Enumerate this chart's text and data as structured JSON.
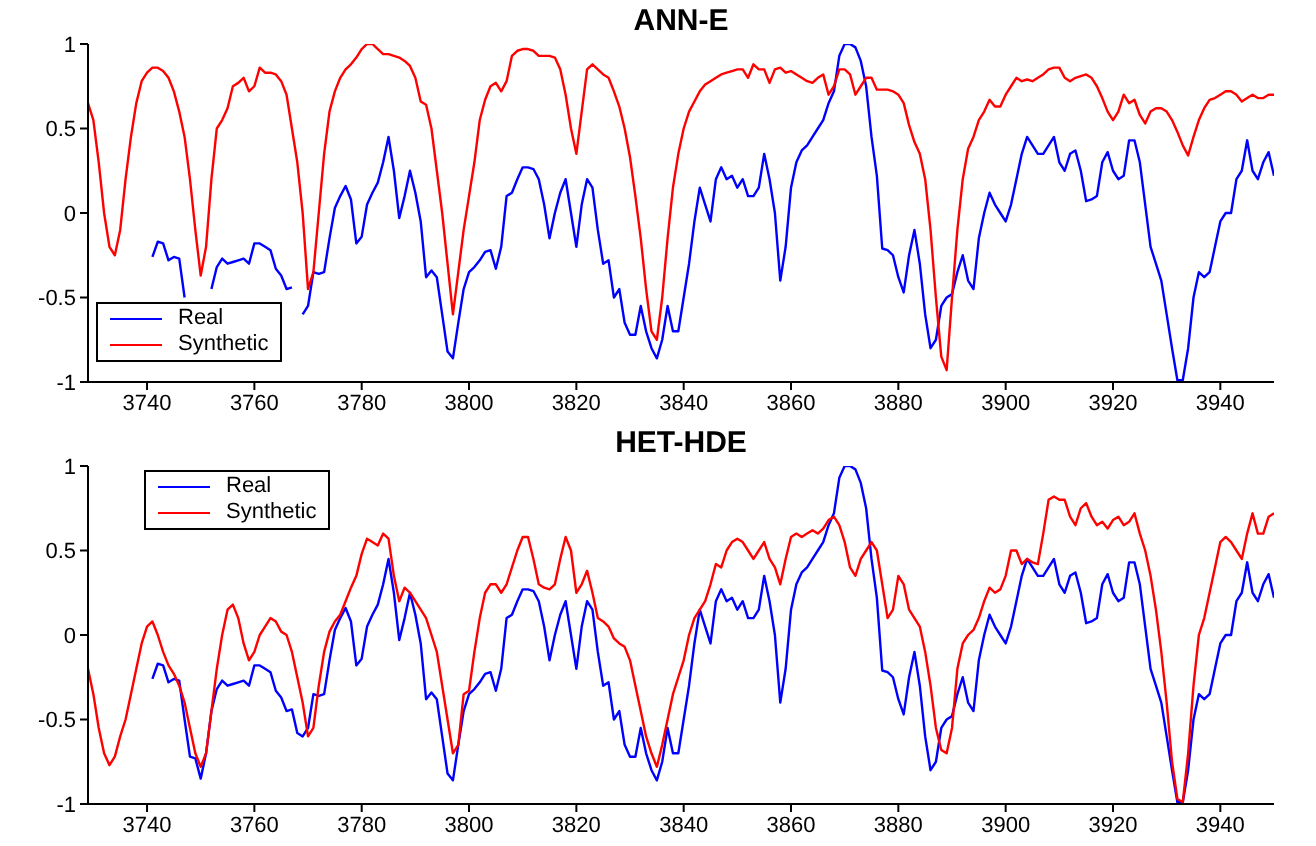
{
  "chart_data": [
    {
      "type": "line",
      "title": "ANN-E",
      "legend": "bottom left",
      "xlim": [
        3729,
        3950
      ],
      "xticks": [
        3740,
        3760,
        3780,
        3800,
        3820,
        3840,
        3860,
        3880,
        3900,
        3920,
        3940
      ],
      "ylim": [
        -1,
        1
      ],
      "yticks": [
        -1,
        -0.5,
        0,
        0.5,
        1
      ],
      "x": [
        3729,
        3730,
        3731,
        3732,
        3733,
        3734,
        3735,
        3736,
        3737,
        3738,
        3739,
        3740,
        3741,
        3742,
        3743,
        3744,
        3745,
        3746,
        3747,
        3748,
        3749,
        3750,
        3751,
        3752,
        3753,
        3754,
        3755,
        3756,
        3757,
        3758,
        3759,
        3760,
        3761,
        3762,
        3763,
        3764,
        3765,
        3766,
        3767,
        3768,
        3769,
        3770,
        3771,
        3772,
        3773,
        3774,
        3775,
        3776,
        3777,
        3778,
        3779,
        3780,
        3781,
        3782,
        3783,
        3784,
        3785,
        3786,
        3787,
        3788,
        3789,
        3790,
        3791,
        3792,
        3793,
        3794,
        3795,
        3796,
        3797,
        3798,
        3799,
        3800,
        3801,
        3802,
        3803,
        3804,
        3805,
        3806,
        3807,
        3808,
        3809,
        3810,
        3811,
        3812,
        3813,
        3814,
        3815,
        3816,
        3817,
        3818,
        3819,
        3820,
        3821,
        3822,
        3823,
        3824,
        3825,
        3826,
        3827,
        3828,
        3829,
        3830,
        3831,
        3832,
        3833,
        3834,
        3835,
        3836,
        3837,
        3838,
        3839,
        3840,
        3841,
        3842,
        3843,
        3844,
        3845,
        3846,
        3847,
        3848,
        3849,
        3850,
        3851,
        3852,
        3853,
        3854,
        3855,
        3856,
        3857,
        3858,
        3859,
        3860,
        3861,
        3862,
        3863,
        3864,
        3865,
        3866,
        3867,
        3868,
        3869,
        3870,
        3871,
        3872,
        3873,
        3874,
        3875,
        3876,
        3877,
        3878,
        3879,
        3880,
        3881,
        3882,
        3883,
        3884,
        3885,
        3886,
        3887,
        3888,
        3889,
        3890,
        3891,
        3892,
        3893,
        3894,
        3895,
        3896,
        3897,
        3898,
        3899,
        3900,
        3901,
        3902,
        3903,
        3904,
        3905,
        3906,
        3907,
        3908,
        3909,
        3910,
        3911,
        3912,
        3913,
        3914,
        3915,
        3916,
        3917,
        3918,
        3919,
        3920,
        3921,
        3922,
        3923,
        3924,
        3925,
        3926,
        3927,
        3928,
        3929,
        3930,
        3931,
        3932,
        3933,
        3934,
        3935,
        3936,
        3937,
        3938,
        3939,
        3940,
        3941,
        3942,
        3943,
        3944,
        3945,
        3946,
        3947,
        3948,
        3949,
        3950
      ],
      "series": [
        {
          "name": "Real",
          "color": "#0000ff",
          "values": [
            null,
            null,
            null,
            null,
            null,
            null,
            null,
            null,
            null,
            null,
            null,
            null,
            -0.26,
            -0.17,
            -0.18,
            -0.28,
            -0.26,
            -0.27,
            -0.5,
            null,
            null,
            null,
            null,
            -0.45,
            -0.32,
            -0.27,
            -0.3,
            -0.29,
            -0.28,
            -0.27,
            -0.3,
            -0.18,
            -0.18,
            -0.2,
            -0.22,
            -0.33,
            -0.37,
            -0.45,
            -0.44,
            null,
            -0.6,
            -0.55,
            -0.35,
            -0.36,
            -0.35,
            -0.15,
            0.03,
            0.1,
            0.16,
            0.08,
            -0.18,
            -0.14,
            0.05,
            0.12,
            0.18,
            0.3,
            0.45,
            0.25,
            -0.03,
            0.1,
            0.25,
            0.12,
            -0.05,
            -0.38,
            -0.34,
            -0.38,
            -0.6,
            -0.82,
            -0.86,
            -0.65,
            -0.45,
            -0.35,
            -0.32,
            -0.28,
            -0.23,
            -0.22,
            -0.33,
            -0.2,
            0.1,
            0.12,
            0.2,
            0.27,
            0.27,
            0.26,
            0.2,
            0.05,
            -0.15,
            0.0,
            0.12,
            0.2,
            0.0,
            -0.2,
            0.05,
            0.2,
            0.15,
            -0.1,
            -0.3,
            -0.28,
            -0.5,
            -0.45,
            -0.65,
            -0.72,
            -0.72,
            -0.55,
            -0.7,
            -0.8,
            -0.86,
            -0.75,
            -0.55,
            -0.7,
            -0.7,
            -0.5,
            -0.3,
            -0.05,
            0.15,
            0.05,
            -0.05,
            0.2,
            0.27,
            0.2,
            0.22,
            0.15,
            0.2,
            0.1,
            0.1,
            0.15,
            0.35,
            0.2,
            0.0,
            -0.4,
            -0.2,
            0.15,
            0.3,
            0.37,
            0.4,
            0.45,
            0.5,
            0.55,
            0.65,
            0.72,
            0.93,
            1.0,
            1.0,
            0.98,
            0.9,
            0.75,
            0.45,
            0.22,
            -0.21,
            -0.22,
            -0.25,
            -0.38,
            -0.47,
            -0.25,
            -0.1,
            -0.3,
            -0.6,
            -0.8,
            -0.75,
            -0.55,
            -0.5,
            -0.48,
            -0.35,
            -0.25,
            -0.4,
            -0.45,
            -0.15,
            0.0,
            0.12,
            0.05,
            0.0,
            -0.05,
            0.05,
            0.2,
            0.35,
            0.45,
            0.4,
            0.35,
            0.35,
            0.4,
            0.45,
            0.3,
            0.25,
            0.35,
            0.37,
            0.25,
            0.07,
            0.08,
            0.1,
            0.3,
            0.36,
            0.25,
            0.2,
            0.22,
            0.43,
            0.43,
            0.3,
            0.05,
            -0.2,
            -0.3,
            -0.4,
            -0.6,
            -0.8,
            -0.99,
            -0.99,
            -0.8,
            -0.5,
            -0.35,
            -0.38,
            -0.35,
            -0.2,
            -0.05,
            0.0,
            0.0,
            0.2,
            0.25,
            0.43,
            0.25,
            0.2,
            0.3,
            0.36,
            0.22
          ]
        },
        {
          "name": "Synthetic",
          "color": "#ff0000",
          "values": [
            0.65,
            0.55,
            0.3,
            0.0,
            -0.2,
            -0.25,
            -0.1,
            0.2,
            0.45,
            0.65,
            0.78,
            0.83,
            0.86,
            0.86,
            0.84,
            0.8,
            0.72,
            0.6,
            0.45,
            0.2,
            -0.1,
            -0.37,
            -0.2,
            0.2,
            0.5,
            0.55,
            0.62,
            0.75,
            0.77,
            0.8,
            0.72,
            0.75,
            0.86,
            0.83,
            0.83,
            0.82,
            0.78,
            0.7,
            0.5,
            0.3,
            0.0,
            -0.45,
            -0.35,
            0.0,
            0.35,
            0.6,
            0.72,
            0.8,
            0.85,
            0.88,
            0.92,
            0.97,
            1.0,
            1.0,
            0.97,
            0.94,
            0.94,
            0.93,
            0.92,
            0.9,
            0.87,
            0.8,
            0.66,
            0.64,
            0.5,
            0.25,
            0.0,
            -0.3,
            -0.6,
            -0.35,
            -0.1,
            0.1,
            0.3,
            0.55,
            0.67,
            0.75,
            0.77,
            0.72,
            0.78,
            0.93,
            0.96,
            0.97,
            0.97,
            0.96,
            0.93,
            0.93,
            0.93,
            0.92,
            0.85,
            0.7,
            0.5,
            0.35,
            0.6,
            0.85,
            0.88,
            0.85,
            0.82,
            0.8,
            0.72,
            0.63,
            0.5,
            0.33,
            0.1,
            -0.15,
            -0.45,
            -0.7,
            -0.75,
            -0.5,
            -0.15,
            0.15,
            0.35,
            0.5,
            0.6,
            0.66,
            0.72,
            0.76,
            0.78,
            0.8,
            0.82,
            0.83,
            0.84,
            0.85,
            0.85,
            0.8,
            0.88,
            0.85,
            0.85,
            0.77,
            0.85,
            0.86,
            0.83,
            0.84,
            0.82,
            0.8,
            0.78,
            0.77,
            0.8,
            0.82,
            0.7,
            0.75,
            0.85,
            0.85,
            0.82,
            0.7,
            0.75,
            0.8,
            0.8,
            0.73,
            0.73,
            0.73,
            0.72,
            0.7,
            0.65,
            0.52,
            0.42,
            0.35,
            0.2,
            -0.1,
            -0.5,
            -0.85,
            -0.93,
            -0.5,
            -0.1,
            0.2,
            0.38,
            0.45,
            0.55,
            0.6,
            0.67,
            0.63,
            0.63,
            0.7,
            0.75,
            0.8,
            0.78,
            0.79,
            0.78,
            0.8,
            0.82,
            0.85,
            0.86,
            0.86,
            0.8,
            0.78,
            0.8,
            0.81,
            0.82,
            0.8,
            0.75,
            0.68,
            0.6,
            0.55,
            0.6,
            0.7,
            0.65,
            0.67,
            0.58,
            0.53,
            0.6,
            0.62,
            0.62,
            0.6,
            0.55,
            0.48,
            0.4,
            0.34,
            0.45,
            0.55,
            0.62,
            0.67,
            0.68,
            0.7,
            0.72,
            0.72,
            0.7,
            0.66,
            0.68,
            0.7,
            0.68,
            0.68,
            0.7,
            0.7
          ]
        }
      ]
    },
    {
      "type": "line",
      "title": "HET-HDE",
      "legend": "top left",
      "xlim": [
        3729,
        3950
      ],
      "xticks": [
        3740,
        3760,
        3780,
        3800,
        3820,
        3840,
        3860,
        3880,
        3900,
        3920,
        3940
      ],
      "ylim": [
        -1,
        1
      ],
      "yticks": [
        -1,
        -0.5,
        0,
        0.5,
        1
      ],
      "x": [
        3729,
        3730,
        3731,
        3732,
        3733,
        3734,
        3735,
        3736,
        3737,
        3738,
        3739,
        3740,
        3741,
        3742,
        3743,
        3744,
        3745,
        3746,
        3747,
        3748,
        3749,
        3750,
        3751,
        3752,
        3753,
        3754,
        3755,
        3756,
        3757,
        3758,
        3759,
        3760,
        3761,
        3762,
        3763,
        3764,
        3765,
        3766,
        3767,
        3768,
        3769,
        3770,
        3771,
        3772,
        3773,
        3774,
        3775,
        3776,
        3777,
        3778,
        3779,
        3780,
        3781,
        3782,
        3783,
        3784,
        3785,
        3786,
        3787,
        3788,
        3789,
        3790,
        3791,
        3792,
        3793,
        3794,
        3795,
        3796,
        3797,
        3798,
        3799,
        3800,
        3801,
        3802,
        3803,
        3804,
        3805,
        3806,
        3807,
        3808,
        3809,
        3810,
        3811,
        3812,
        3813,
        3814,
        3815,
        3816,
        3817,
        3818,
        3819,
        3820,
        3821,
        3822,
        3823,
        3824,
        3825,
        3826,
        3827,
        3828,
        3829,
        3830,
        3831,
        3832,
        3833,
        3834,
        3835,
        3836,
        3837,
        3838,
        3839,
        3840,
        3841,
        3842,
        3843,
        3844,
        3845,
        3846,
        3847,
        3848,
        3849,
        3850,
        3851,
        3852,
        3853,
        3854,
        3855,
        3856,
        3857,
        3858,
        3859,
        3860,
        3861,
        3862,
        3863,
        3864,
        3865,
        3866,
        3867,
        3868,
        3869,
        3870,
        3871,
        3872,
        3873,
        3874,
        3875,
        3876,
        3877,
        3878,
        3879,
        3880,
        3881,
        3882,
        3883,
        3884,
        3885,
        3886,
        3887,
        3888,
        3889,
        3890,
        3891,
        3892,
        3893,
        3894,
        3895,
        3896,
        3897,
        3898,
        3899,
        3900,
        3901,
        3902,
        3903,
        3904,
        3905,
        3906,
        3907,
        3908,
        3909,
        3910,
        3911,
        3912,
        3913,
        3914,
        3915,
        3916,
        3917,
        3918,
        3919,
        3920,
        3921,
        3922,
        3923,
        3924,
        3925,
        3926,
        3927,
        3928,
        3929,
        3930,
        3931,
        3932,
        3933,
        3934,
        3935,
        3936,
        3937,
        3938,
        3939,
        3940,
        3941,
        3942,
        3943,
        3944,
        3945,
        3946,
        3947,
        3948,
        3949,
        3950
      ],
      "series": [
        {
          "name": "Real",
          "color": "#0000ff",
          "values": [
            null,
            null,
            null,
            null,
            null,
            null,
            null,
            null,
            null,
            null,
            null,
            null,
            -0.26,
            -0.17,
            -0.18,
            -0.28,
            -0.26,
            -0.27,
            -0.5,
            -0.72,
            -0.73,
            -0.85,
            -0.7,
            -0.45,
            -0.32,
            -0.27,
            -0.3,
            -0.29,
            -0.28,
            -0.27,
            -0.3,
            -0.18,
            -0.18,
            -0.2,
            -0.22,
            -0.33,
            -0.37,
            -0.45,
            -0.44,
            -0.58,
            -0.6,
            -0.55,
            -0.35,
            -0.36,
            -0.35,
            -0.15,
            0.03,
            0.1,
            0.16,
            0.08,
            -0.18,
            -0.14,
            0.05,
            0.12,
            0.18,
            0.3,
            0.45,
            0.25,
            -0.03,
            0.1,
            0.25,
            0.12,
            -0.05,
            -0.38,
            -0.34,
            -0.38,
            -0.6,
            -0.82,
            -0.86,
            -0.65,
            -0.45,
            -0.35,
            -0.32,
            -0.28,
            -0.23,
            -0.22,
            -0.33,
            -0.2,
            0.1,
            0.12,
            0.2,
            0.27,
            0.27,
            0.26,
            0.2,
            0.05,
            -0.15,
            0.0,
            0.12,
            0.2,
            0.0,
            -0.2,
            0.05,
            0.2,
            0.15,
            -0.1,
            -0.3,
            -0.28,
            -0.5,
            -0.45,
            -0.65,
            -0.72,
            -0.72,
            -0.55,
            -0.7,
            -0.8,
            -0.86,
            -0.75,
            -0.55,
            -0.7,
            -0.7,
            -0.5,
            -0.3,
            -0.05,
            0.15,
            0.05,
            -0.05,
            0.2,
            0.27,
            0.2,
            0.22,
            0.15,
            0.2,
            0.1,
            0.1,
            0.15,
            0.35,
            0.2,
            0.0,
            -0.4,
            -0.2,
            0.15,
            0.3,
            0.37,
            0.4,
            0.45,
            0.5,
            0.55,
            0.65,
            0.72,
            0.93,
            1.0,
            1.0,
            0.98,
            0.9,
            0.75,
            0.45,
            0.22,
            -0.21,
            -0.22,
            -0.25,
            -0.38,
            -0.47,
            -0.25,
            -0.1,
            -0.3,
            -0.6,
            -0.8,
            -0.75,
            -0.55,
            -0.5,
            -0.48,
            -0.35,
            -0.25,
            -0.4,
            -0.45,
            -0.15,
            0.0,
            0.12,
            0.05,
            0.0,
            -0.05,
            0.05,
            0.2,
            0.35,
            0.45,
            0.4,
            0.35,
            0.35,
            0.4,
            0.45,
            0.3,
            0.25,
            0.35,
            0.37,
            0.25,
            0.07,
            0.08,
            0.1,
            0.3,
            0.36,
            0.25,
            0.2,
            0.22,
            0.43,
            0.43,
            0.3,
            0.05,
            -0.2,
            -0.3,
            -0.4,
            -0.6,
            -0.8,
            -0.99,
            -0.99,
            -0.8,
            -0.5,
            -0.35,
            -0.38,
            -0.35,
            -0.2,
            -0.05,
            0.0,
            0.0,
            0.2,
            0.25,
            0.43,
            0.25,
            0.2,
            0.3,
            0.36,
            0.22
          ]
        },
        {
          "name": "Synthetic",
          "color": "#ff0000",
          "values": [
            -0.2,
            -0.35,
            -0.55,
            -0.7,
            -0.77,
            -0.72,
            -0.6,
            -0.5,
            -0.35,
            -0.2,
            -0.05,
            0.05,
            0.08,
            0.0,
            -0.1,
            -0.18,
            -0.23,
            -0.3,
            -0.4,
            -0.55,
            -0.7,
            -0.78,
            -0.7,
            -0.45,
            -0.2,
            0.0,
            0.15,
            0.18,
            0.1,
            -0.05,
            -0.15,
            -0.1,
            0.0,
            0.05,
            0.1,
            0.08,
            0.02,
            0.0,
            -0.1,
            -0.25,
            -0.4,
            -0.6,
            -0.55,
            -0.3,
            -0.1,
            0.02,
            0.08,
            0.12,
            0.2,
            0.28,
            0.35,
            0.48,
            0.57,
            0.55,
            0.53,
            0.6,
            0.57,
            0.35,
            0.2,
            0.28,
            0.25,
            0.2,
            0.15,
            0.1,
            0.0,
            -0.1,
            -0.3,
            -0.5,
            -0.7,
            -0.65,
            -0.35,
            -0.33,
            -0.1,
            0.1,
            0.25,
            0.3,
            0.3,
            0.25,
            0.3,
            0.4,
            0.5,
            0.58,
            0.58,
            0.45,
            0.3,
            0.28,
            0.27,
            0.3,
            0.45,
            0.58,
            0.5,
            0.25,
            0.3,
            0.38,
            0.25,
            0.1,
            0.08,
            0.05,
            -0.02,
            -0.05,
            -0.07,
            -0.15,
            -0.3,
            -0.45,
            -0.6,
            -0.7,
            -0.78,
            -0.65,
            -0.5,
            -0.35,
            -0.25,
            -0.15,
            0.0,
            0.1,
            0.15,
            0.2,
            0.3,
            0.42,
            0.4,
            0.5,
            0.55,
            0.57,
            0.55,
            0.5,
            0.45,
            0.5,
            0.55,
            0.45,
            0.4,
            0.3,
            0.45,
            0.58,
            0.6,
            0.58,
            0.6,
            0.62,
            0.6,
            0.63,
            0.68,
            0.7,
            0.65,
            0.55,
            0.4,
            0.35,
            0.45,
            0.5,
            0.55,
            0.5,
            0.3,
            0.1,
            0.15,
            0.35,
            0.3,
            0.15,
            0.1,
            0.05,
            -0.1,
            -0.3,
            -0.55,
            -0.68,
            -0.7,
            -0.55,
            -0.2,
            -0.05,
            0.0,
            0.03,
            0.1,
            0.2,
            0.28,
            0.25,
            0.27,
            0.35,
            0.5,
            0.5,
            0.42,
            0.45,
            0.43,
            0.42,
            0.6,
            0.8,
            0.82,
            0.8,
            0.8,
            0.7,
            0.65,
            0.75,
            0.78,
            0.7,
            0.65,
            0.67,
            0.63,
            0.68,
            0.7,
            0.65,
            0.67,
            0.72,
            0.6,
            0.5,
            0.35,
            0.15,
            -0.1,
            -0.4,
            -0.75,
            -0.97,
            -0.99,
            -0.7,
            -0.3,
            0.0,
            0.1,
            0.25,
            0.4,
            0.55,
            0.58,
            0.55,
            0.5,
            0.45,
            0.6,
            0.72,
            0.6,
            0.6,
            0.7,
            0.72
          ]
        }
      ]
    }
  ]
}
